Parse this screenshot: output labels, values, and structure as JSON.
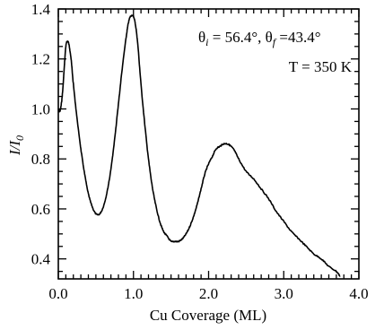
{
  "chart_data": {
    "type": "line",
    "xlabel": "Cu Coverage (ML)",
    "ylabel": {
      "main": "I/I",
      "sub": "0"
    },
    "xlim": [
      0,
      4.0
    ],
    "ylim": [
      0.32,
      1.4
    ],
    "x_ticks": [
      {
        "value": 0,
        "label": "0.0"
      },
      {
        "value": 1,
        "label": "1.0"
      },
      {
        "value": 2,
        "label": "2.0"
      },
      {
        "value": 3,
        "label": "3.0"
      },
      {
        "value": 4,
        "label": "4.0"
      }
    ],
    "y_ticks": [
      {
        "value": 0.4,
        "label": "0.4"
      },
      {
        "value": 0.6,
        "label": "0.6"
      },
      {
        "value": 0.8,
        "label": "0.8"
      },
      {
        "value": 1.0,
        "label": "1.0"
      },
      {
        "value": 1.2,
        "label": "1.2"
      },
      {
        "value": 1.4,
        "label": "1.4"
      }
    ],
    "x_minor_step": 0.1,
    "y_minor_step": 0.05,
    "grid": false,
    "annotations": {
      "angles": {
        "theta_sym": "θ",
        "i_sub": "i",
        "i_val": " =  56.4°, ",
        "f_sub": "f",
        "f_val": " =43.4°"
      },
      "temperature": "T = 350 K"
    },
    "series": [
      {
        "x": [
          0.0,
          0.02,
          0.04,
          0.06,
          0.08,
          0.1,
          0.12,
          0.14,
          0.17,
          0.2,
          0.25,
          0.3,
          0.35,
          0.4,
          0.45,
          0.5,
          0.55,
          0.6,
          0.65,
          0.7,
          0.75,
          0.8,
          0.85,
          0.9,
          0.93,
          0.96,
          1.0,
          1.03,
          1.06,
          1.1,
          1.15,
          1.2,
          1.25,
          1.3,
          1.35,
          1.4,
          1.45,
          1.5,
          1.55,
          1.6,
          1.65,
          1.7,
          1.75,
          1.8,
          1.85,
          1.9,
          1.95,
          2.0,
          2.05,
          2.1,
          2.15,
          2.2,
          2.25,
          2.3,
          2.35,
          2.4,
          2.5,
          2.6,
          2.7,
          2.8,
          2.9,
          3.0,
          3.1,
          3.2,
          3.3,
          3.4,
          3.5,
          3.6,
          3.7,
          3.75
        ],
        "y": [
          1.0,
          0.99,
          1.02,
          1.08,
          1.17,
          1.25,
          1.27,
          1.26,
          1.2,
          1.1,
          0.96,
          0.84,
          0.74,
          0.66,
          0.61,
          0.58,
          0.58,
          0.61,
          0.67,
          0.76,
          0.88,
          1.02,
          1.16,
          1.28,
          1.34,
          1.37,
          1.37,
          1.33,
          1.25,
          1.1,
          0.94,
          0.8,
          0.69,
          0.61,
          0.55,
          0.51,
          0.49,
          0.47,
          0.47,
          0.47,
          0.48,
          0.5,
          0.53,
          0.57,
          0.62,
          0.68,
          0.74,
          0.78,
          0.81,
          0.84,
          0.85,
          0.86,
          0.86,
          0.85,
          0.83,
          0.8,
          0.75,
          0.72,
          0.68,
          0.64,
          0.59,
          0.55,
          0.51,
          0.48,
          0.45,
          0.42,
          0.4,
          0.37,
          0.35,
          0.33
        ]
      }
    ]
  }
}
